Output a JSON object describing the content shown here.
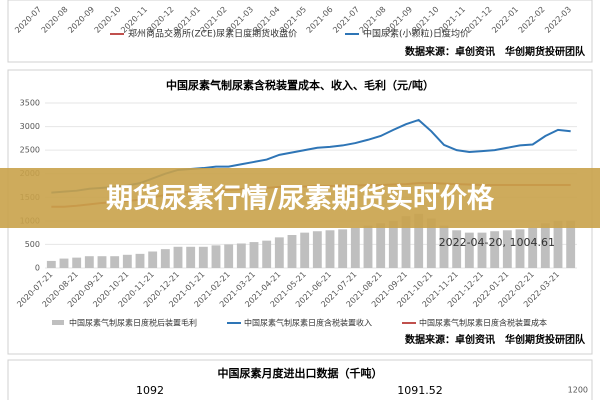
{
  "top_panel": {
    "x_labels": [
      "2020-07",
      "2020-08",
      "2020-09",
      "2020-10",
      "2020-11",
      "2020-12",
      "2021-01",
      "2021-02",
      "2021-03",
      "2021-04",
      "2021-05",
      "2021-06",
      "2021-07",
      "2021-08",
      "2021-09",
      "2021-10",
      "2021-11",
      "2021-12",
      "2022-01",
      "2022-02",
      "2022-03"
    ],
    "legend": [
      {
        "name": "郑州商品交易所(ZCE)尿素日度期货收盘价",
        "color": "#c0504d"
      },
      {
        "name": "中国尿素(小颗粒)日度均价",
        "color": "#2e75b6"
      }
    ],
    "source": "数据来源：卓创资讯　华创期货投研团队"
  },
  "chart_data": {
    "type": "combo",
    "title": "中国尿素气制尿素含税装置成本、收入、毛利（元/吨）",
    "categories": [
      "2020-07-21",
      null,
      "2020-08-21",
      null,
      "2020-09-21",
      null,
      "2020-10-21",
      null,
      "2020-11-21",
      null,
      "2020-12-21",
      null,
      "2021-01-21",
      null,
      "2021-02-21",
      null,
      "2021-03-21",
      null,
      "2021-04-21",
      null,
      "2021-05-21",
      null,
      "2021-06-21",
      null,
      "2021-07-21",
      null,
      "2021-08-21",
      null,
      "2021-09-21",
      null,
      "2021-10-21",
      null,
      "2021-11-21",
      null,
      "2021-12-21",
      null,
      "2022-01-21",
      null,
      "2022-02-21",
      null,
      "2022-03-21",
      null
    ],
    "series": [
      {
        "name": "中国尿素气制尿素日度税后装置毛利",
        "kind": "bar",
        "color": "#bfbfbf",
        "values": [
          150,
          200,
          220,
          250,
          250,
          250,
          280,
          300,
          350,
          400,
          450,
          450,
          450,
          480,
          500,
          520,
          550,
          580,
          650,
          700,
          750,
          780,
          800,
          820,
          850,
          900,
          950,
          1000,
          1100,
          1150,
          1050,
          900,
          800,
          750,
          750,
          780,
          800,
          820,
          850,
          950,
          1000,
          1004.61
        ]
      },
      {
        "name": "中国尿素气制尿素日度含税装置收入",
        "kind": "line",
        "color": "#2e75b6",
        "values": [
          1600,
          1620,
          1640,
          1680,
          1700,
          1720,
          1750,
          1800,
          1900,
          2000,
          2080,
          2100,
          2120,
          2150,
          2150,
          2200,
          2250,
          2300,
          2400,
          2450,
          2500,
          2550,
          2570,
          2600,
          2650,
          2720,
          2800,
          2930,
          3050,
          3140,
          2900,
          2610,
          2500,
          2460,
          2480,
          2500,
          2550,
          2600,
          2620,
          2800,
          2930,
          2900
        ]
      },
      {
        "name": "中国尿素气制尿素日度含税装置成本",
        "kind": "line",
        "color": "#c0504d",
        "values": [
          1300,
          1300,
          1320,
          1350,
          1380,
          1400,
          1420,
          1450,
          1500,
          1550,
          1600,
          1620,
          1650,
          1650,
          1660,
          1670,
          1680,
          1700,
          1720,
          1720,
          1730,
          1740,
          1740,
          1750,
          1750,
          1760,
          1760,
          1770,
          1780,
          1800,
          1800,
          1790,
          1780,
          1770,
          1760,
          1760,
          1760,
          1760,
          1760,
          1760,
          1760,
          1760
        ]
      }
    ],
    "annotation": "2022-04-20, 1004.61",
    "ylim": [
      0,
      3500
    ],
    "yticks": [
      0,
      500,
      1000,
      1500,
      2000,
      2500,
      3000,
      3500
    ],
    "source": "数据来源：卓创资讯　华创期货投研团队"
  },
  "banner": "期货尿素行情/尿素期货实时价格",
  "bottom_panel": {
    "title": "中国尿素月度进出口数据（千吨）",
    "labels": [
      "1092",
      "1091.52",
      "1200"
    ]
  }
}
